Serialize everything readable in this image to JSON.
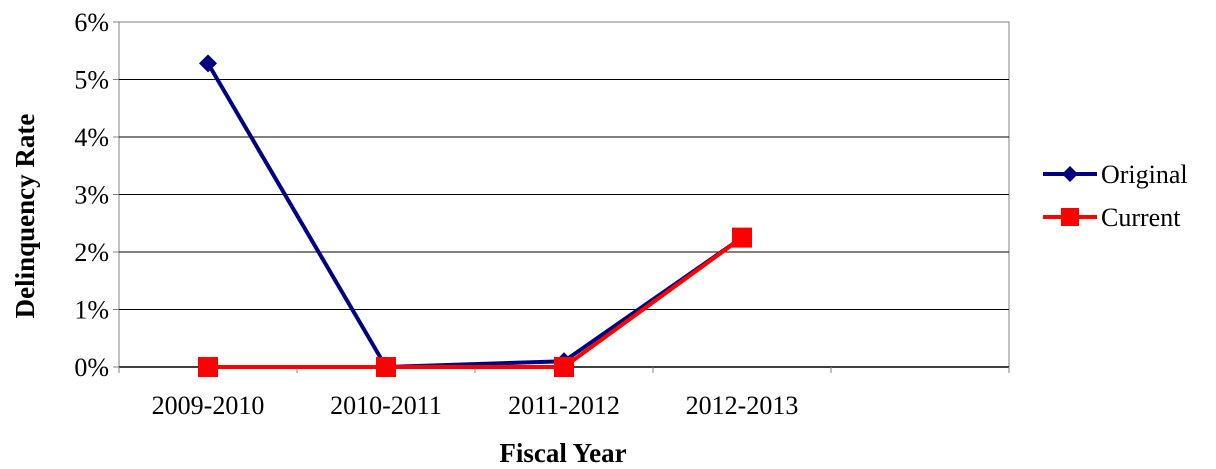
{
  "chart_data": {
    "type": "line",
    "title": "",
    "xlabel": "Fiscal Year",
    "ylabel": "Delinquency Rate",
    "categories": [
      "2009-2010",
      "2010-2011",
      "2011-2012",
      "2012-2013"
    ],
    "y_ticks": [
      "0%",
      "1%",
      "2%",
      "3%",
      "4%",
      "5%",
      "6%"
    ],
    "ylim": [
      0,
      6
    ],
    "x_slots": 5,
    "grid": "horizontal",
    "legend_position": "right",
    "series": [
      {
        "name": "Original",
        "values": [
          5.28,
          0.0,
          0.1,
          2.25
        ],
        "color": "#000080",
        "marker": "diamond"
      },
      {
        "name": "Current",
        "values": [
          0.0,
          0.0,
          0.0,
          2.25
        ],
        "color": "#ff0000",
        "marker": "square"
      }
    ]
  }
}
